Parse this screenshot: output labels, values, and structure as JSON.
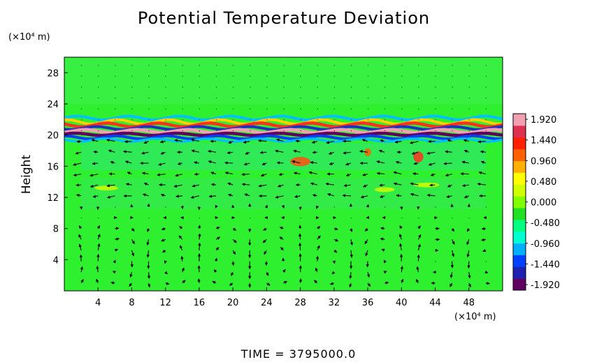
{
  "chart_data": {
    "type": "heatmap",
    "title": "Potential Temperature Deviation",
    "ylabel": "Height",
    "xunit": "(×10⁴ m)",
    "yunit": "(×10⁴ m)",
    "xlim": [
      0,
      52
    ],
    "ylim": [
      0,
      30
    ],
    "xticks": [
      "4",
      "8",
      "12",
      "16",
      "20",
      "24",
      "28",
      "32",
      "36",
      "40",
      "44",
      "48"
    ],
    "yticks": [
      "4",
      "8",
      "12",
      "16",
      "20",
      "24",
      "28"
    ],
    "colorbar": {
      "range": [
        -1.92,
        1.92
      ],
      "labels": [
        "1.920",
        "1.440",
        "0.960",
        "0.480",
        "0.000",
        "-0.480",
        "-0.960",
        "-1.440",
        "-1.920"
      ],
      "colors": [
        "#600060",
        "#2020b0",
        "#0040ff",
        "#00b0ff",
        "#00ffd0",
        "#00ff80",
        "#20e020",
        "#80ff00",
        "#d0ff00",
        "#ffff00",
        "#ffb000",
        "#ff6000",
        "#ff2000",
        "#e03050",
        "#f0a0b0"
      ]
    },
    "overlay": "wind vectors",
    "time_label": "TIME = 3795000.0"
  }
}
